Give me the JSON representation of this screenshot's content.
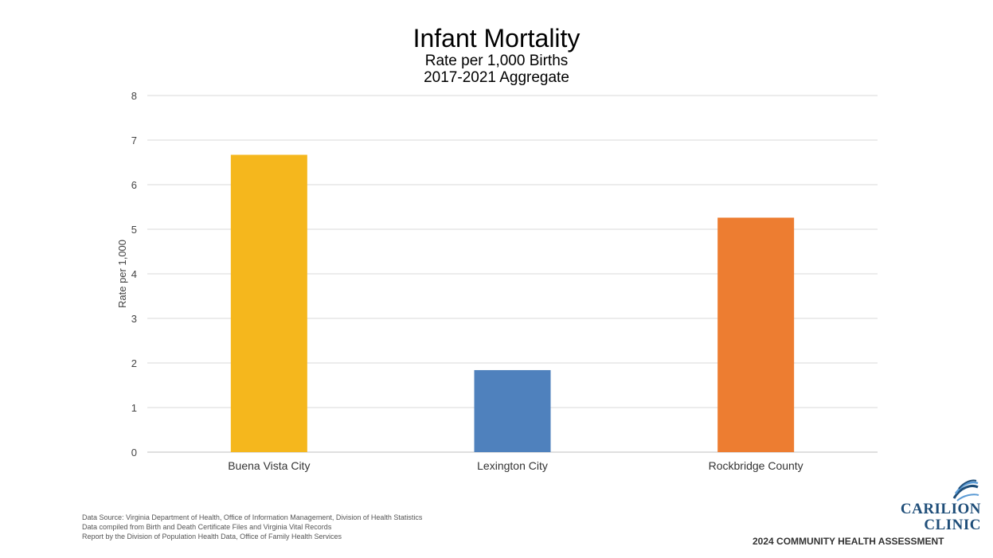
{
  "chart_data": {
    "type": "bar",
    "title": "Infant Mortality",
    "subtitle": [
      "Rate per 1,000 Births",
      "2017-2021 Aggregate"
    ],
    "categories": [
      "Buena Vista City",
      "Lexington City",
      "Rockbridge County"
    ],
    "values": [
      6.67,
      1.84,
      5.26
    ],
    "colors": [
      "#f5b71d",
      "#4f81bd",
      "#ed7d31"
    ],
    "ylabel": "Rate per 1,000",
    "xlabel": "",
    "ylim": [
      0,
      8
    ],
    "yticks": [
      "0",
      "1",
      "2",
      "3",
      "4",
      "5",
      "6",
      "7",
      "8"
    ],
    "grid": true,
    "legend": "none"
  },
  "footer": {
    "source_lines": [
      "Data Source: Virginia Department of Health, Office of Information Management, Division of Health Statistics",
      "Data compiled from Birth and Death Certificate Files and Virginia Vital Records",
      "Report by the Division of Population Health Data, Office of Family Health Services"
    ],
    "logo_line1": "CARILION",
    "logo_line2": "CLINIC",
    "assessment": "2024 COMMUNITY HEALTH ASSESSMENT",
    "logo_icon": "carilion-swoosh-icon"
  }
}
